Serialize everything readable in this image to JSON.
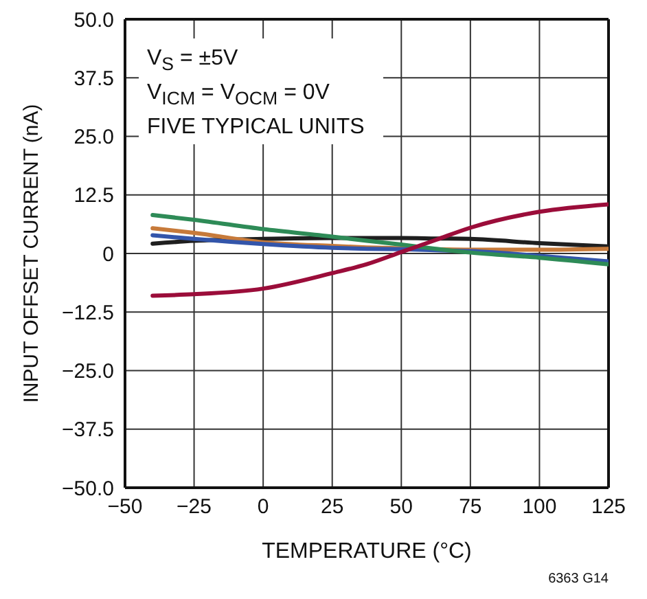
{
  "chart_data": {
    "type": "line",
    "xlabel": "TEMPERATURE (°C)",
    "ylabel": "INPUT OFFSET CURRENT (nA)",
    "annotations": [
      "V$_{S}$ = ±5V",
      "V$_{ICM}$ = V$_{OCM}$ = 0V",
      "FIVE TYPICAL UNITS",
      "6363 G14"
    ],
    "x": [
      -40,
      -25,
      0,
      25,
      37.5,
      50,
      62.5,
      75,
      100,
      125
    ],
    "series": [
      {
        "color": "#1f1f1f",
        "values": [
          2.1,
          2.7,
          3.1,
          3.3,
          3.3,
          3.3,
          3.2,
          3.1,
          2.2,
          1.5
        ]
      },
      {
        "color": "#c77a3a",
        "values": [
          5.4,
          4.4,
          2.4,
          1.6,
          1.3,
          1.1,
          0.9,
          0.8,
          0.8,
          1.0
        ]
      },
      {
        "color": "#3355aa",
        "values": [
          3.9,
          3.1,
          2.0,
          1.2,
          1.0,
          0.9,
          0.7,
          0.5,
          -0.5,
          -1.7
        ]
      },
      {
        "color": "#2e8b57",
        "values": [
          8.2,
          7.2,
          5.2,
          3.6,
          2.7,
          1.9,
          1.0,
          0.2,
          -0.9,
          -2.3
        ]
      },
      {
        "color": "#9b0d3a",
        "values": [
          -9.0,
          -8.7,
          -7.5,
          -4.2,
          -2.3,
          0.3,
          2.9,
          5.5,
          8.9,
          10.5
        ]
      }
    ],
    "xlim": [
      -50,
      125
    ],
    "xticks": [
      {
        "value": -50,
        "label": "−50"
      },
      {
        "value": -25,
        "label": "−25"
      },
      0,
      25,
      50,
      75,
      100,
      125
    ],
    "ylim": [
      -50,
      50
    ],
    "yticks": [
      {
        "value": -50,
        "label": "−50.0"
      },
      {
        "value": -37.5,
        "label": "−37.5"
      },
      {
        "value": -25,
        "label": "−25.0"
      },
      {
        "value": -12.5,
        "label": "−12.5"
      },
      0,
      12.5,
      {
        "value": 25,
        "label": "25.0"
      },
      37.5,
      {
        "value": 50,
        "label": "50.0"
      }
    ],
    "grid": true,
    "marker": "none",
    "line_style": "solid"
  }
}
